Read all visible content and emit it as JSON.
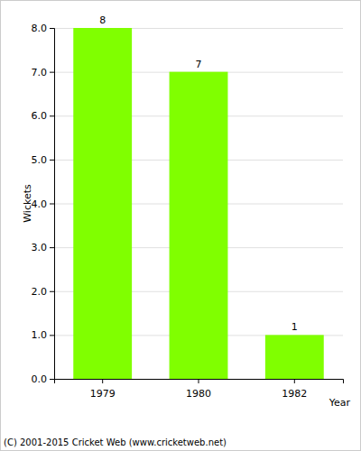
{
  "chart_data": {
    "type": "bar",
    "x_label": "Year",
    "y_label": "Wickets",
    "annotations": [
      "(C) 2001-2015 Cricket Web (www.cricketweb.net)"
    ],
    "categories": [
      "1979",
      "1980",
      "1982"
    ],
    "values": [
      8,
      7,
      1
    ],
    "color": "#80ff00",
    "data_labels": true,
    "grid": true,
    "ylim": [
      0,
      8
    ],
    "yticks": [
      {
        "value": 0,
        "label": "0.0"
      },
      {
        "value": 1,
        "label": "1.0"
      },
      {
        "value": 2,
        "label": "2.0"
      },
      {
        "value": 3,
        "label": "3.0"
      },
      {
        "value": 4,
        "label": "4.0"
      },
      {
        "value": 5,
        "label": "5.0"
      },
      {
        "value": 6,
        "label": "6.0"
      },
      {
        "value": 7,
        "label": "7.0"
      },
      {
        "value": 8,
        "label": "8.0"
      }
    ]
  }
}
